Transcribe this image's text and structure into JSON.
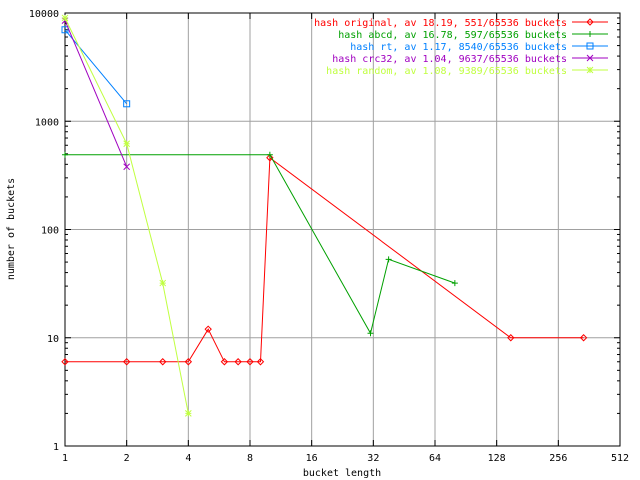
{
  "chart_data": {
    "type": "line",
    "title": "",
    "xlabel": "bucket length",
    "ylabel": "number of buckets",
    "x_scale": "log2",
    "y_scale": "log10",
    "xlim": [
      1,
      512
    ],
    "ylim": [
      1,
      10000
    ],
    "grid": true,
    "legend_position": "top-right",
    "x_ticks": [
      1,
      2,
      4,
      8,
      16,
      32,
      64,
      128,
      256,
      512
    ],
    "x_tick_labels": [
      "1",
      "2",
      "4",
      "8",
      "16",
      "32",
      "64",
      "128",
      "256",
      "512"
    ],
    "y_ticks": [
      1,
      10,
      100,
      1000,
      10000
    ],
    "y_tick_labels": [
      "1",
      "10",
      "100",
      "1000",
      "10000"
    ],
    "series": [
      {
        "name": "hash original, av 18.19, 551/65536 buckets",
        "color": "#ff0000",
        "marker": "diamond",
        "points": [
          [
            1,
            6
          ],
          [
            2,
            6
          ],
          [
            3,
            6
          ],
          [
            4,
            6
          ],
          [
            5,
            12
          ],
          [
            6,
            6
          ],
          [
            7,
            6
          ],
          [
            8,
            6
          ],
          [
            9,
            6
          ],
          [
            10,
            460
          ],
          [
            150,
            10
          ],
          [
            340,
            10
          ]
        ]
      },
      {
        "name": "hash abcd, av 16.78, 597/65536 buckets",
        "color": "#00a000",
        "marker": "plus",
        "points": [
          [
            1,
            490
          ],
          [
            10,
            490
          ],
          [
            31,
            11
          ],
          [
            38,
            53
          ],
          [
            80,
            32
          ]
        ]
      },
      {
        "name": "hash rt, av 1.17, 8540/65536 buckets",
        "color": "#0080ff",
        "marker": "square",
        "points": [
          [
            1,
            7000
          ],
          [
            2,
            1450
          ]
        ]
      },
      {
        "name": "hash crc32, av 1.04, 9637/65536 buckets",
        "color": "#a000c0",
        "marker": "x",
        "points": [
          [
            1,
            8500
          ],
          [
            2,
            380
          ]
        ]
      },
      {
        "name": "hash random, av 1.08, 9389/65536 buckets",
        "color": "#c0ff40",
        "marker": "star",
        "points": [
          [
            1,
            9000
          ],
          [
            2,
            620
          ],
          [
            3,
            32
          ],
          [
            4,
            2
          ]
        ]
      }
    ]
  }
}
